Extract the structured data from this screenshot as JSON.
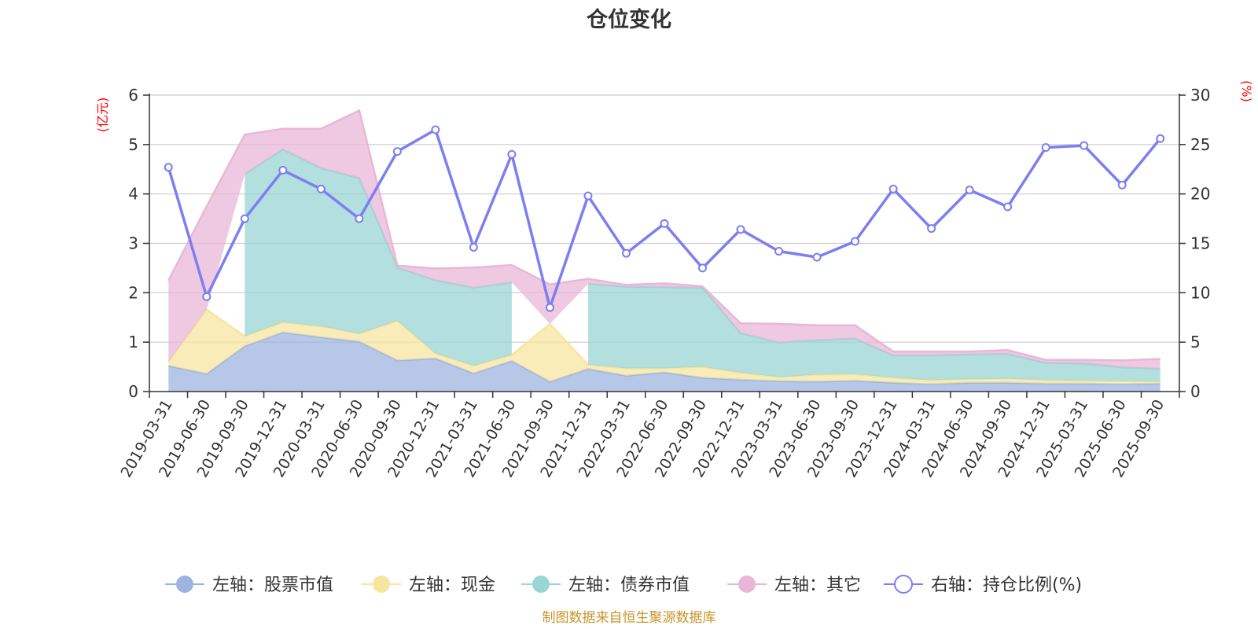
{
  "chart_data": {
    "type": "area",
    "title": "仓位变化",
    "left_axis_unit": "(亿元)",
    "right_axis_unit": "(%)",
    "ylim_left": [
      0,
      6
    ],
    "ylim_right": [
      0,
      30
    ],
    "yticks_left": [
      "0",
      "1",
      "2",
      "3",
      "4",
      "5",
      "6"
    ],
    "yticks_right": [
      "0",
      "5",
      "10",
      "15",
      "20",
      "25",
      "30"
    ],
    "stacked": true,
    "grid": true,
    "legend_position": "bottom",
    "categories": [
      "2019-03-31",
      "2019-06-30",
      "2019-09-30",
      "2019-12-31",
      "2020-03-31",
      "2020-06-30",
      "2020-09-30",
      "2020-12-31",
      "2021-03-31",
      "2021-06-30",
      "2021-09-30",
      "2021-12-31",
      "2022-03-31",
      "2022-06-30",
      "2022-09-30",
      "2022-12-31",
      "2023-03-31",
      "2023-06-30",
      "2023-09-30",
      "2023-12-31",
      "2024-03-31",
      "2024-06-30",
      "2024-09-30",
      "2024-12-31",
      "2025-03-31",
      "2025-06-30",
      "2025-09-30"
    ],
    "series": [
      {
        "name": "左轴：股票市值",
        "axis": "left",
        "color": "#9db4e0",
        "values": [
          0.52,
          0.36,
          0.92,
          1.2,
          1.1,
          1.01,
          0.63,
          0.67,
          0.37,
          0.62,
          0.2,
          0.46,
          0.32,
          0.39,
          0.28,
          0.24,
          0.21,
          0.2,
          0.22,
          0.18,
          0.15,
          0.18,
          0.18,
          0.16,
          0.16,
          0.15,
          0.16
        ]
      },
      {
        "name": "左轴：现金",
        "axis": "left",
        "color": "#f7e5a0",
        "values": [
          0.08,
          1.3,
          0.2,
          0.2,
          0.22,
          0.16,
          0.8,
          0.1,
          0.15,
          0.12,
          1.17,
          0.08,
          0.15,
          0.08,
          0.22,
          0.14,
          0.08,
          0.14,
          0.13,
          0.1,
          0.08,
          0.07,
          0.08,
          0.07,
          0.06,
          0.06,
          0.04
        ]
      },
      {
        "name": "左轴：债券市值",
        "axis": "left",
        "color": "#9ad6d4",
        "values": [
          0,
          0,
          3.28,
          3.5,
          3.2,
          3.15,
          1.08,
          1.48,
          1.58,
          1.47,
          0,
          1.64,
          1.65,
          1.64,
          1.6,
          0.8,
          0.7,
          0.7,
          0.72,
          0.45,
          0.5,
          0.5,
          0.5,
          0.35,
          0.35,
          0.28,
          0.26
        ]
      },
      {
        "name": "左轴：其它",
        "axis": "left",
        "color": "#e8b7d7",
        "values": [
          1.65,
          2.09,
          0.8,
          0.42,
          0.8,
          1.37,
          0.04,
          0.24,
          0.41,
          0.35,
          0.8,
          0.1,
          0.04,
          0.08,
          0.03,
          0.2,
          0.38,
          0.3,
          0.27,
          0.08,
          0.08,
          0.06,
          0.08,
          0.06,
          0.07,
          0.14,
          0.2
        ]
      },
      {
        "name": "右轴：持仓比例(%)",
        "axis": "right",
        "type": "line",
        "color": "#7b7ff0",
        "values": [
          22.7,
          9.6,
          17.5,
          22.4,
          20.5,
          17.5,
          24.3,
          26.5,
          14.6,
          24.0,
          8.5,
          19.8,
          14.0,
          17.0,
          12.5,
          16.4,
          14.2,
          13.6,
          15.2,
          20.5,
          16.5,
          20.4,
          18.7,
          24.7,
          24.9,
          20.9,
          25.6
        ]
      }
    ]
  },
  "footer": {
    "source": "制图数据来自恒生聚源数据库"
  }
}
